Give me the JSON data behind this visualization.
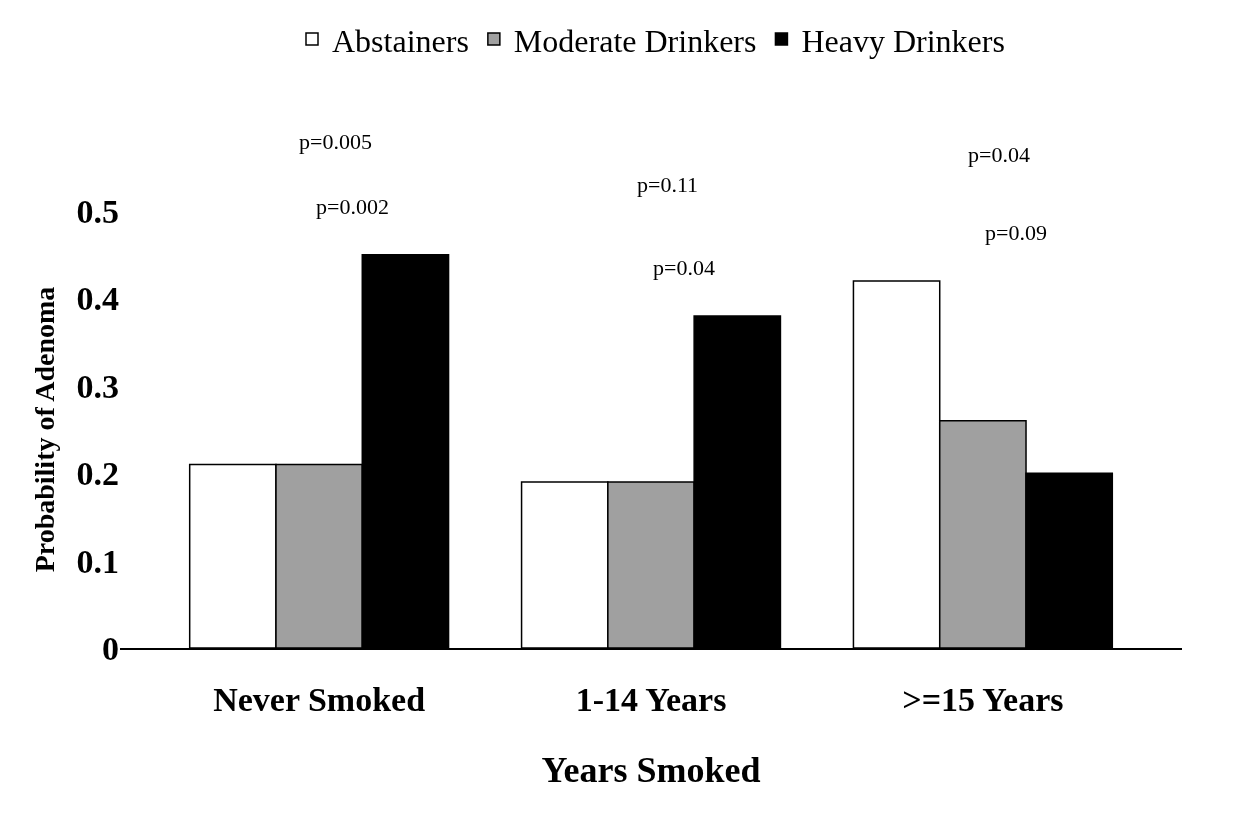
{
  "chart_data": {
    "type": "bar",
    "xlabel": "Years Smoked",
    "ylabel": "Probability of Adenoma",
    "categories": [
      "Never Smoked",
      "1-14 Years",
      ">=15 Years"
    ],
    "series": [
      {
        "name": "Abstainers",
        "color": "#ffffff",
        "values": [
          0.21,
          0.19,
          0.42
        ]
      },
      {
        "name": "Moderate Drinkers",
        "color": "#a0a0a0",
        "values": [
          0.21,
          0.19,
          0.26
        ]
      },
      {
        "name": "Heavy Drinkers",
        "color": "#000000",
        "values": [
          0.45,
          0.38,
          0.2
        ]
      }
    ],
    "ylim": [
      0,
      0.5
    ],
    "yticks": [
      0,
      0.1,
      0.2,
      0.3,
      0.4,
      0.5
    ],
    "grid": false,
    "legend": "top",
    "annotations": [
      "p=0.005",
      "p=0.002",
      "p=0.11",
      "p=0.04",
      "p=0.04",
      "p=0.09"
    ]
  }
}
